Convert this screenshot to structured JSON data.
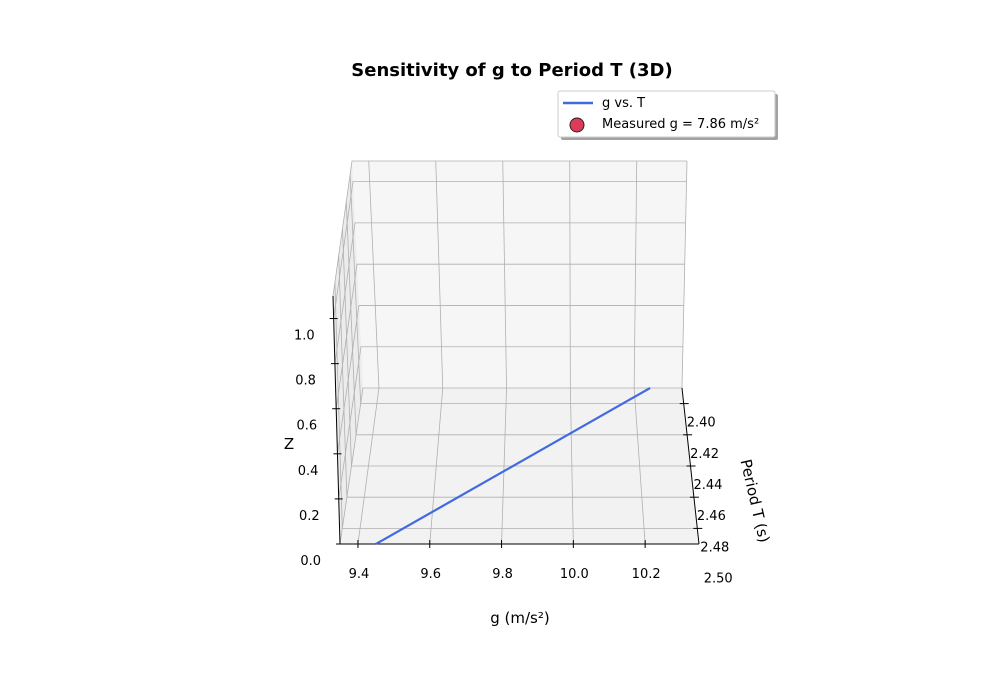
{
  "chart_data": {
    "type": "line",
    "projection": "3d",
    "title": "Sensitivity of g to Period T (3D)",
    "xlabel": "g (m/s²)",
    "ylabel": "Period T (s)",
    "zlabel": "Z",
    "x_ticks": [
      "9.4",
      "9.6",
      "9.8",
      "10.0",
      "10.2"
    ],
    "y_ticks": [
      "2.40",
      "2.42",
      "2.44",
      "2.46",
      "2.48",
      "2.50"
    ],
    "z_ticks": [
      "0.0",
      "0.2",
      "0.4",
      "0.6",
      "0.8",
      "1.0"
    ],
    "xlim": [
      9.35,
      10.35
    ],
    "ylim": [
      2.39,
      2.49
    ],
    "zlim": [
      0,
      1.1
    ],
    "grid": true,
    "legend_position": "top-right",
    "series": [
      {
        "name": "g vs. T",
        "color": "#4169e1",
        "x": [
          9.45,
          10.25
        ],
        "y": [
          2.49,
          2.39
        ],
        "z": [
          0,
          0
        ]
      }
    ],
    "points": [
      {
        "name": "Measured g = 7.86 m/s²",
        "color": "#dc3c5a",
        "edge_color": "#222222"
      }
    ],
    "legend": [
      "g vs. T",
      "Measured g = 7.86 m/s²"
    ]
  }
}
